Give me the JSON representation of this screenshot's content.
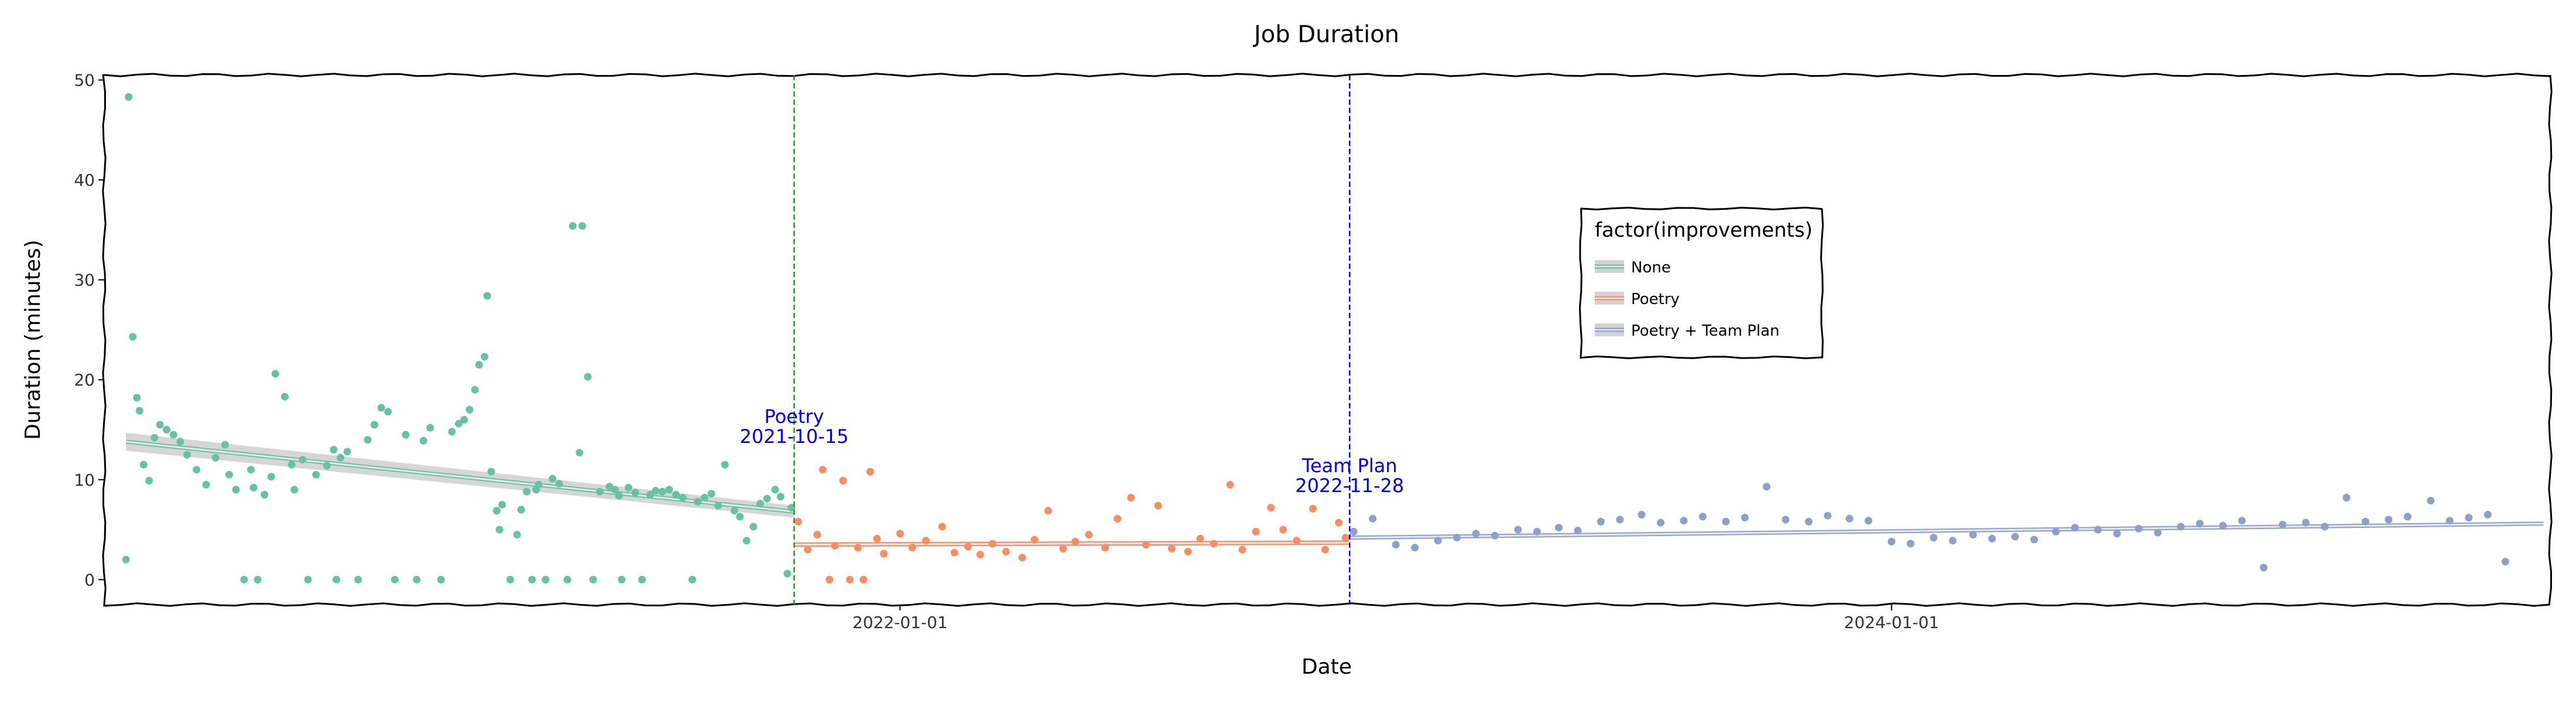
{
  "chart_data": {
    "type": "scatter",
    "title": "Job Duration",
    "xlabel": "Date",
    "ylabel": "Duration (minutes)",
    "ylim": [
      -2.5,
      50.5
    ],
    "xlim": [
      "2020-05-25",
      "2025-04-30"
    ],
    "y_ticks": [
      0,
      10,
      20,
      30,
      40,
      50
    ],
    "x_ticks": [
      "2022-01-01",
      "2024-01-01"
    ],
    "grid": false,
    "legend": {
      "title": "factor(improvements)",
      "position": "top-right",
      "entries": [
        "None",
        "Poetry",
        "Poetry + Team Plan"
      ]
    },
    "annotations": [
      {
        "x": "2021-10-15",
        "lines": [
          "Poetry",
          "2021-10-15"
        ],
        "color": "#2e8b2e"
      },
      {
        "x": "2022-11-28",
        "lines": [
          "Team Plan",
          "2022-11-28"
        ],
        "color": "#0000ee"
      }
    ],
    "colors": {
      "None": "#66c2a5",
      "Poetry": "#fc8d62",
      "Poetry + Team Plan": "#8da0cb",
      "trend": "#e8e8e8",
      "band": "#c8c8c8"
    },
    "series": [
      {
        "name": "None",
        "x": [
          "2020-06-10",
          "2020-06-12",
          "2020-06-15",
          "2020-06-18",
          "2020-06-20",
          "2020-06-23",
          "2020-06-27",
          "2020-07-01",
          "2020-07-05",
          "2020-07-10",
          "2020-07-15",
          "2020-07-20",
          "2020-07-25",
          "2020-08-01",
          "2020-08-08",
          "2020-08-15",
          "2020-08-22",
          "2020-08-25",
          "2020-08-30",
          "2020-09-05",
          "2020-09-10",
          "2020-09-12",
          "2020-09-15",
          "2020-09-20",
          "2020-09-25",
          "2020-09-28",
          "2020-10-05",
          "2020-10-10",
          "2020-10-12",
          "2020-10-18",
          "2020-10-22",
          "2020-10-28",
          "2020-11-05",
          "2020-11-10",
          "2020-11-12",
          "2020-11-15",
          "2020-11-20",
          "2020-11-28",
          "2020-12-05",
          "2020-12-10",
          "2020-12-15",
          "2020-12-20",
          "2020-12-25",
          "2021-01-02",
          "2021-01-10",
          "2021-01-15",
          "2021-01-20",
          "2021-01-28",
          "2021-02-05",
          "2021-02-10",
          "2021-02-14",
          "2021-02-18",
          "2021-02-22",
          "2021-02-25",
          "2021-03-01",
          "2021-03-03",
          "2021-03-06",
          "2021-03-10",
          "2021-03-12",
          "2021-03-14",
          "2021-03-20",
          "2021-03-25",
          "2021-03-28",
          "2021-04-01",
          "2021-04-05",
          "2021-04-08",
          "2021-04-10",
          "2021-04-15",
          "2021-04-20",
          "2021-04-25",
          "2021-05-01",
          "2021-05-05",
          "2021-05-10",
          "2021-05-12",
          "2021-05-16",
          "2021-05-20",
          "2021-05-25",
          "2021-06-01",
          "2021-06-05",
          "2021-06-08",
          "2021-06-10",
          "2021-06-15",
          "2021-06-20",
          "2021-06-25",
          "2021-07-01",
          "2021-07-05",
          "2021-07-10",
          "2021-07-15",
          "2021-07-20",
          "2021-07-25",
          "2021-08-01",
          "2021-08-05",
          "2021-08-10",
          "2021-08-15",
          "2021-08-20",
          "2021-08-25",
          "2021-09-01",
          "2021-09-05",
          "2021-09-10",
          "2021-09-15",
          "2021-09-20",
          "2021-09-25",
          "2021-10-01",
          "2021-10-05",
          "2021-10-10",
          "2021-10-13"
        ],
        "y": [
          2.0,
          48.3,
          24.3,
          18.2,
          16.9,
          11.5,
          9.9,
          14.2,
          15.5,
          15.0,
          14.5,
          13.8,
          12.5,
          11.0,
          9.5,
          12.2,
          13.5,
          10.5,
          9.0,
          0.0,
          11.0,
          9.2,
          0.0,
          8.5,
          10.3,
          20.6,
          18.3,
          11.5,
          9.0,
          12.0,
          0.0,
          10.5,
          11.4,
          13.0,
          0.0,
          12.2,
          12.8,
          0.0,
          14.0,
          15.5,
          17.2,
          16.8,
          0.0,
          14.5,
          0.0,
          13.9,
          15.2,
          0.0,
          14.8,
          15.6,
          16.0,
          17.0,
          19.0,
          21.5,
          22.3,
          28.4,
          10.8,
          6.9,
          5.0,
          7.5,
          0.0,
          4.5,
          7.0,
          8.8,
          0.0,
          9.0,
          9.5,
          0.0,
          10.1,
          9.6,
          0.0,
          35.4,
          12.7,
          35.4,
          20.3,
          0.0,
          8.8,
          9.3,
          9.0,
          8.4,
          0.0,
          9.2,
          8.7,
          0.0,
          8.5,
          8.9,
          8.8,
          9.0,
          8.5,
          8.2,
          0.0,
          7.8,
          8.2,
          8.6,
          7.4,
          11.5,
          6.9,
          6.3,
          3.9,
          5.3,
          7.6,
          8.1,
          9.0,
          8.3,
          0.6,
          7.2
        ]
      },
      {
        "name": "Poetry",
        "x": [
          "2021-10-18",
          "2021-10-25",
          "2021-11-01",
          "2021-11-05",
          "2021-11-10",
          "2021-11-14",
          "2021-11-20",
          "2021-11-25",
          "2021-12-01",
          "2021-12-05",
          "2021-12-10",
          "2021-12-15",
          "2021-12-20",
          "2022-01-01",
          "2022-01-10",
          "2022-01-20",
          "2022-02-01",
          "2022-02-10",
          "2022-02-20",
          "2022-03-01",
          "2022-03-10",
          "2022-03-20",
          "2022-04-01",
          "2022-04-10",
          "2022-04-20",
          "2022-05-01",
          "2022-05-10",
          "2022-05-20",
          "2022-06-01",
          "2022-06-10",
          "2022-06-20",
          "2022-07-01",
          "2022-07-10",
          "2022-07-20",
          "2022-08-01",
          "2022-08-10",
          "2022-08-20",
          "2022-09-01",
          "2022-09-10",
          "2022-09-20",
          "2022-10-01",
          "2022-10-10",
          "2022-10-20",
          "2022-11-01",
          "2022-11-10",
          "2022-11-20",
          "2022-11-25"
        ],
        "y": [
          5.8,
          3.0,
          4.5,
          11.0,
          0.0,
          3.4,
          9.9,
          0.0,
          3.2,
          0.0,
          10.8,
          4.1,
          2.6,
          4.6,
          3.2,
          3.9,
          5.3,
          2.7,
          3.3,
          2.5,
          3.6,
          2.8,
          2.2,
          4.0,
          6.9,
          3.1,
          3.8,
          4.5,
          3.2,
          6.1,
          8.2,
          3.5,
          7.4,
          3.1,
          2.8,
          4.1,
          3.6,
          9.5,
          3.0,
          4.8,
          7.2,
          5.0,
          3.9,
          7.1,
          3.0,
          5.7,
          4.2
        ]
      },
      {
        "name": "Poetry + Team Plan",
        "x": [
          "2022-12-01",
          "2022-12-15",
          "2023-01-01",
          "2023-01-15",
          "2023-02-01",
          "2023-02-15",
          "2023-03-01",
          "2023-03-15",
          "2023-04-01",
          "2023-04-15",
          "2023-05-01",
          "2023-05-15",
          "2023-06-01",
          "2023-06-15",
          "2023-07-01",
          "2023-07-15",
          "2023-08-01",
          "2023-08-15",
          "2023-09-01",
          "2023-09-15",
          "2023-10-01",
          "2023-10-15",
          "2023-11-01",
          "2023-11-15",
          "2023-12-01",
          "2023-12-15",
          "2024-01-01",
          "2024-01-15",
          "2024-02-01",
          "2024-02-15",
          "2024-03-01",
          "2024-03-15",
          "2024-04-01",
          "2024-04-15",
          "2024-05-01",
          "2024-05-15",
          "2024-06-01",
          "2024-06-15",
          "2024-07-01",
          "2024-07-15",
          "2024-08-01",
          "2024-08-15",
          "2024-09-01",
          "2024-09-15",
          "2024-10-01",
          "2024-10-15",
          "2024-11-01",
          "2024-11-15",
          "2024-12-01",
          "2024-12-15",
          "2025-01-01",
          "2025-01-15",
          "2025-02-01",
          "2025-02-15",
          "2025-03-01",
          "2025-03-15",
          "2025-03-28"
        ],
        "y": [
          4.8,
          6.1,
          3.5,
          3.2,
          3.9,
          4.2,
          4.6,
          4.4,
          5.0,
          4.8,
          5.2,
          4.9,
          5.8,
          6.0,
          6.5,
          5.7,
          5.9,
          6.3,
          5.8,
          6.2,
          9.3,
          6.0,
          5.8,
          6.4,
          6.1,
          5.9,
          3.8,
          3.6,
          4.2,
          3.9,
          4.5,
          4.1,
          4.3,
          4.0,
          4.8,
          5.2,
          5.0,
          4.6,
          5.1,
          4.7,
          5.3,
          5.6,
          5.4,
          5.9,
          1.2,
          5.5,
          5.7,
          5.3,
          8.2,
          5.8,
          6.0,
          6.3,
          7.9,
          5.9,
          6.2,
          6.5,
          1.8
        ]
      }
    ],
    "trends": [
      {
        "series": "None",
        "x": [
          "2020-06-10",
          "2021-10-15"
        ],
        "y": [
          13.8,
          6.8
        ],
        "band": [
          0.9,
          0.6
        ]
      },
      {
        "series": "Poetry",
        "x": [
          "2021-10-15",
          "2022-11-28"
        ],
        "y": [
          3.5,
          3.7
        ],
        "band": [
          0.25,
          0.25
        ]
      },
      {
        "series": "Poetry + Team Plan",
        "x": [
          "2022-11-28",
          "2025-04-25"
        ],
        "y": [
          4.2,
          5.6
        ],
        "band": [
          0.2,
          0.2
        ]
      }
    ]
  }
}
